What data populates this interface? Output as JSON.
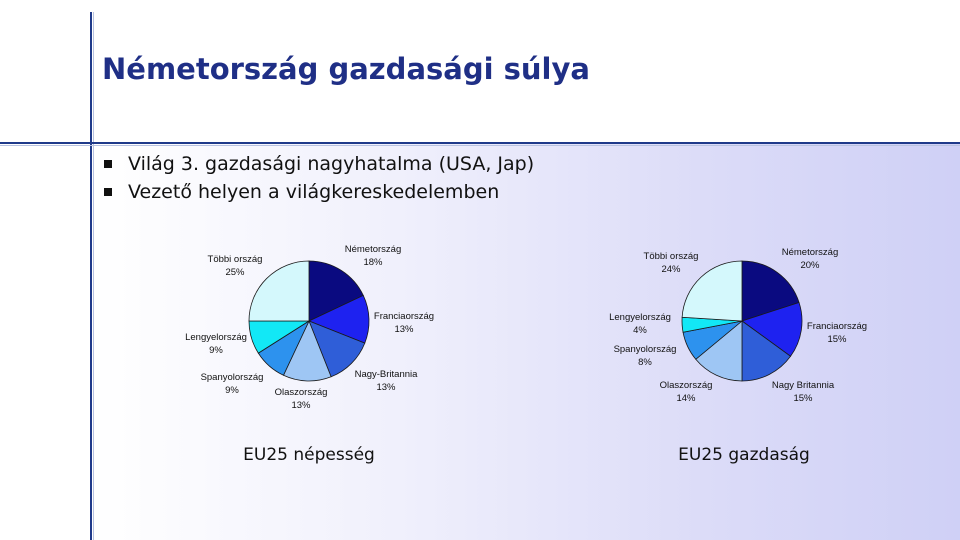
{
  "slide": {
    "title": "Németország gazdasági súlya",
    "bullets": [
      "Világ 3. gazdasági nagyhatalma (USA, Jap)",
      "Vezető helyen a világkereskedelemben"
    ]
  },
  "chart_data": [
    {
      "type": "pie",
      "title": "EU25 népesség",
      "unit": "%",
      "slices": [
        {
          "label": "Németország",
          "value": 18,
          "color": "#0a0a80"
        },
        {
          "label": "Franciaország",
          "value": 13,
          "color": "#1e22f0"
        },
        {
          "label": "Nagy-Britannia",
          "value": 13,
          "color": "#2f5ed8"
        },
        {
          "label": "Olaszország",
          "value": 13,
          "color": "#9ec6f4"
        },
        {
          "label": "Spanyolország",
          "value": 9,
          "color": "#2d92ee"
        },
        {
          "label": "Lengyelország",
          "value": 9,
          "color": "#12e8f6"
        },
        {
          "label": "Többi ország",
          "value": 25,
          "color": "#d4f8fc"
        }
      ]
    },
    {
      "type": "pie",
      "title": "EU25 gazdaság",
      "unit": "%",
      "slices": [
        {
          "label": "Németország",
          "value": 20,
          "color": "#0a0a80"
        },
        {
          "label": "Franciaország",
          "value": 15,
          "color": "#1e22f0"
        },
        {
          "label": "Nagy Britannia",
          "value": 15,
          "color": "#2f5ed8"
        },
        {
          "label": "Olaszország",
          "value": 14,
          "color": "#9ec6f4"
        },
        {
          "label": "Spanyolország",
          "value": 8,
          "color": "#2d92ee"
        },
        {
          "label": "Lengyelország",
          "value": 4,
          "color": "#12e8f6"
        },
        {
          "label": "Többi ország",
          "value": 24,
          "color": "#d4f8fc"
        }
      ]
    }
  ]
}
